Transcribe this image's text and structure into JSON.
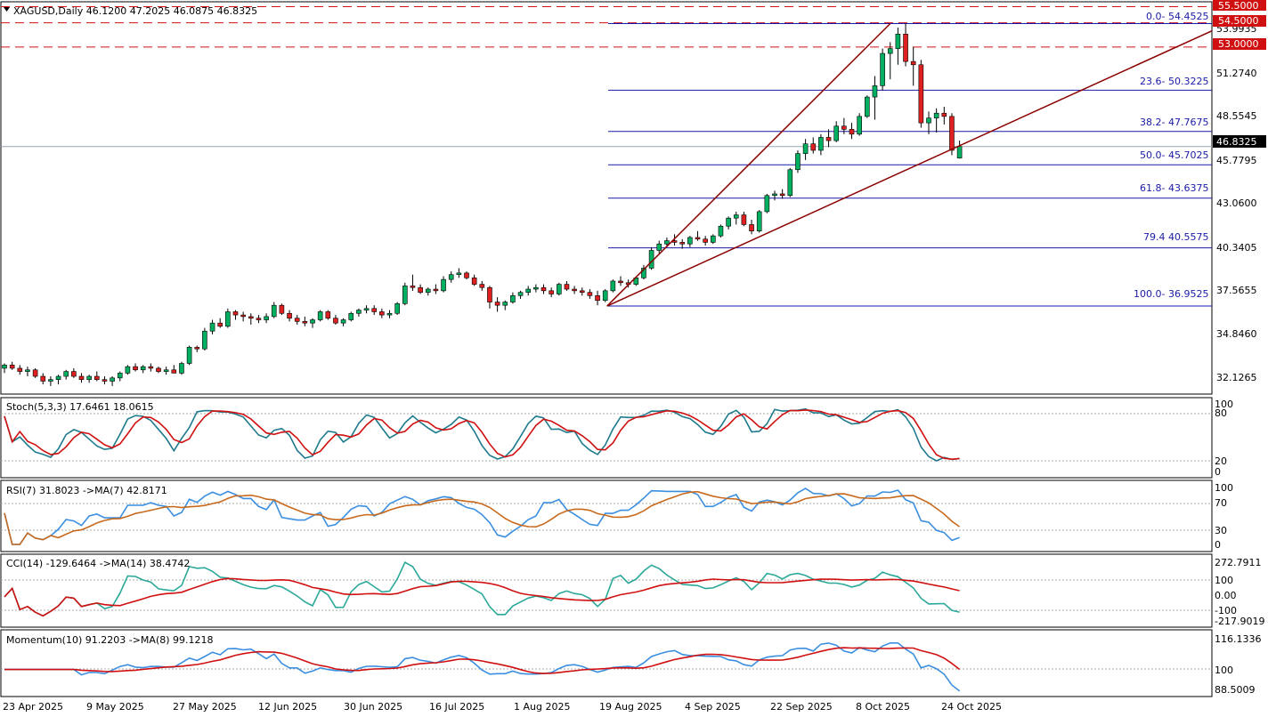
{
  "main_header": {
    "symbol_line": "XAGUSD,Daily  46.1200 47.2025 46.0875 46.8325"
  },
  "price_axis": {
    "ticks": [
      "53.9935",
      "51.2740",
      "48.5545",
      "45.7795",
      "43.0600",
      "40.3405",
      "37.5655",
      "34.8460",
      "32.1265"
    ],
    "current_price": "46.8325",
    "levels": [
      "55.5000",
      "54.5000",
      "53.0000"
    ]
  },
  "fibonacci": [
    {
      "label": "0.0- 54.4525",
      "price": 54.4525
    },
    {
      "label": "23.6- 50.3225",
      "price": 50.3225
    },
    {
      "label": "38.2- 47.7675",
      "price": 47.7675
    },
    {
      "label": "50.0- 45.7025",
      "price": 45.7025
    },
    {
      "label": "61.8- 43.6375",
      "price": 43.6375
    },
    {
      "label": "79.4 40.5575",
      "price": 40.5575
    },
    {
      "label": "100.0- 36.9525",
      "price": 36.9525
    }
  ],
  "stoch": {
    "header": "Stoch(5,3,3) 17.6461 18.0615",
    "ticks": [
      "100",
      "80",
      "20",
      "0"
    ]
  },
  "rsi": {
    "header": "RSI(7) 31.8023  ->MA(7) 42.8171",
    "ticks": [
      "100",
      "70",
      "30",
      "0"
    ]
  },
  "cci": {
    "header": "CCI(14) -129.6464  ->MA(14) 38.4742",
    "ticks": [
      "272.7911",
      "100",
      "0.00",
      "-100",
      "-217.9019"
    ]
  },
  "momentum": {
    "header": "Momentum(10) 91.2203  ->MA(8) 99.1218",
    "ticks": [
      "116.1336",
      "100",
      "88.5009"
    ]
  },
  "time_axis": [
    "23 Apr 2025",
    "9 May 2025",
    "27 May 2025",
    "12 Jun 2025",
    "30 Jun 2025",
    "16 Jul 2025",
    "1 Aug 2025",
    "19 Aug 2025",
    "4 Sep 2025",
    "22 Sep 2025",
    "8 Oct 2025",
    "24 Oct 2025"
  ],
  "colors": {
    "bull": "#00b060",
    "bear": "#e02020",
    "fib": "#1a1aa8",
    "trend": "#8b0000",
    "level": "#d01010"
  },
  "chart_data": {
    "type": "candlestick",
    "symbol": "XAGUSD",
    "timeframe": "Daily",
    "ohlc": [
      [
        33.1,
        33.4,
        32.8,
        33.3
      ],
      [
        33.3,
        33.5,
        33.0,
        33.1
      ],
      [
        33.1,
        33.3,
        32.7,
        32.9
      ],
      [
        32.9,
        33.2,
        32.6,
        33.0
      ],
      [
        33.0,
        33.1,
        32.5,
        32.6
      ],
      [
        32.6,
        32.8,
        32.1,
        32.3
      ],
      [
        32.3,
        32.6,
        32.0,
        32.4
      ],
      [
        32.4,
        32.7,
        32.1,
        32.6
      ],
      [
        32.6,
        33.0,
        32.4,
        32.9
      ],
      [
        32.9,
        33.1,
        32.5,
        32.6
      ],
      [
        32.6,
        32.8,
        32.2,
        32.4
      ],
      [
        32.4,
        32.7,
        32.2,
        32.6
      ],
      [
        32.6,
        32.9,
        32.3,
        32.4
      ],
      [
        32.4,
        32.6,
        32.1,
        32.3
      ],
      [
        32.3,
        32.6,
        32.0,
        32.5
      ],
      [
        32.5,
        32.9,
        32.3,
        32.8
      ],
      [
        32.8,
        33.3,
        32.7,
        33.2
      ],
      [
        33.2,
        33.4,
        32.9,
        33.0
      ],
      [
        33.0,
        33.3,
        32.8,
        33.2
      ],
      [
        33.2,
        33.4,
        32.9,
        33.1
      ],
      [
        33.1,
        33.2,
        32.8,
        32.9
      ],
      [
        32.9,
        33.2,
        32.7,
        33.0
      ],
      [
        33.0,
        33.3,
        32.8,
        32.8
      ],
      [
        32.8,
        33.5,
        32.7,
        33.4
      ],
      [
        33.4,
        34.5,
        33.3,
        34.4
      ],
      [
        34.4,
        34.5,
        34.1,
        34.3
      ],
      [
        34.3,
        35.6,
        34.2,
        35.4
      ],
      [
        35.4,
        36.1,
        35.2,
        35.9
      ],
      [
        35.9,
        36.2,
        35.6,
        35.7
      ],
      [
        35.7,
        36.8,
        35.6,
        36.6
      ],
      [
        36.6,
        36.7,
        36.1,
        36.4
      ],
      [
        36.4,
        36.6,
        36.0,
        36.3
      ],
      [
        36.3,
        36.5,
        35.8,
        36.2
      ],
      [
        36.2,
        36.4,
        35.9,
        36.1
      ],
      [
        36.1,
        36.5,
        35.9,
        36.3
      ],
      [
        36.3,
        37.2,
        36.2,
        37.0
      ],
      [
        37.0,
        37.1,
        36.4,
        36.5
      ],
      [
        36.5,
        36.7,
        36.0,
        36.2
      ],
      [
        36.2,
        36.4,
        35.8,
        36.0
      ],
      [
        36.0,
        36.3,
        35.7,
        35.9
      ],
      [
        35.9,
        36.2,
        35.6,
        36.1
      ],
      [
        36.1,
        36.7,
        36.0,
        36.6
      ],
      [
        36.6,
        36.7,
        36.1,
        36.2
      ],
      [
        36.2,
        36.4,
        35.8,
        35.9
      ],
      [
        35.9,
        36.2,
        35.7,
        36.1
      ],
      [
        36.1,
        36.6,
        36.0,
        36.5
      ],
      [
        36.5,
        36.8,
        36.3,
        36.7
      ],
      [
        36.7,
        37.0,
        36.5,
        36.8
      ],
      [
        36.8,
        37.0,
        36.4,
        36.6
      ],
      [
        36.6,
        36.8,
        36.2,
        36.4
      ],
      [
        36.4,
        36.7,
        36.2,
        36.5
      ],
      [
        36.5,
        37.2,
        36.4,
        37.1
      ],
      [
        37.1,
        38.4,
        37.0,
        38.2
      ],
      [
        38.2,
        38.9,
        37.9,
        38.1
      ],
      [
        38.1,
        38.3,
        37.7,
        37.8
      ],
      [
        37.8,
        38.1,
        37.6,
        38.0
      ],
      [
        38.0,
        38.3,
        37.7,
        37.9
      ],
      [
        37.9,
        38.8,
        37.8,
        38.6
      ],
      [
        38.6,
        39.1,
        38.4,
        38.9
      ],
      [
        38.9,
        39.3,
        38.7,
        39.0
      ],
      [
        39.0,
        39.1,
        38.6,
        38.7
      ],
      [
        38.7,
        38.9,
        38.2,
        38.3
      ],
      [
        38.3,
        38.5,
        37.9,
        38.1
      ],
      [
        38.1,
        38.2,
        36.8,
        37.2
      ],
      [
        37.2,
        37.5,
        36.6,
        37.0
      ],
      [
        37.0,
        37.3,
        36.7,
        37.2
      ],
      [
        37.2,
        37.8,
        37.1,
        37.6
      ],
      [
        37.6,
        37.9,
        37.4,
        37.8
      ],
      [
        37.8,
        38.2,
        37.6,
        38.0
      ],
      [
        38.0,
        38.3,
        37.8,
        38.1
      ],
      [
        38.1,
        38.3,
        37.7,
        37.9
      ],
      [
        37.9,
        38.1,
        37.5,
        37.7
      ],
      [
        37.7,
        38.4,
        37.6,
        38.3
      ],
      [
        38.3,
        38.5,
        37.9,
        38.0
      ],
      [
        38.0,
        38.2,
        37.7,
        37.9
      ],
      [
        37.9,
        38.1,
        37.6,
        37.8
      ],
      [
        37.8,
        38.0,
        37.4,
        37.6
      ],
      [
        37.6,
        37.9,
        37.0,
        37.3
      ],
      [
        37.3,
        38.0,
        37.2,
        37.9
      ],
      [
        37.9,
        38.6,
        37.8,
        38.5
      ],
      [
        38.5,
        38.8,
        38.2,
        38.4
      ],
      [
        38.4,
        38.6,
        38.1,
        38.3
      ],
      [
        38.3,
        38.8,
        38.2,
        38.7
      ],
      [
        38.7,
        39.5,
        38.6,
        39.3
      ],
      [
        39.3,
        40.6,
        39.2,
        40.4
      ],
      [
        40.4,
        41.0,
        40.2,
        40.8
      ],
      [
        40.8,
        41.2,
        40.6,
        41.0
      ],
      [
        41.0,
        41.4,
        40.7,
        40.9
      ],
      [
        40.9,
        41.1,
        40.5,
        40.8
      ],
      [
        40.8,
        41.3,
        40.6,
        41.2
      ],
      [
        41.2,
        41.6,
        41.0,
        41.1
      ],
      [
        41.1,
        41.3,
        40.7,
        40.9
      ],
      [
        40.9,
        41.4,
        40.8,
        41.3
      ],
      [
        41.3,
        42.0,
        41.2,
        41.9
      ],
      [
        41.9,
        42.5,
        41.7,
        42.4
      ],
      [
        42.4,
        42.8,
        42.0,
        42.6
      ],
      [
        42.6,
        42.8,
        41.9,
        42.0
      ],
      [
        42.0,
        42.3,
        41.4,
        41.6
      ],
      [
        41.6,
        42.9,
        41.5,
        42.8
      ],
      [
        42.8,
        43.9,
        42.7,
        43.8
      ],
      [
        43.8,
        44.1,
        43.5,
        43.9
      ],
      [
        43.9,
        44.2,
        43.6,
        43.8
      ],
      [
        43.8,
        45.5,
        43.7,
        45.4
      ],
      [
        45.4,
        46.6,
        45.2,
        46.4
      ],
      [
        46.4,
        47.3,
        46.0,
        47.0
      ],
      [
        47.0,
        47.4,
        46.4,
        46.6
      ],
      [
        46.6,
        47.6,
        46.3,
        47.4
      ],
      [
        47.4,
        47.9,
        46.8,
        47.2
      ],
      [
        47.2,
        48.4,
        47.1,
        48.1
      ],
      [
        48.1,
        48.6,
        47.6,
        47.9
      ],
      [
        47.9,
        48.3,
        47.3,
        47.6
      ],
      [
        47.6,
        48.9,
        47.5,
        48.7
      ],
      [
        48.7,
        50.0,
        48.6,
        49.9
      ],
      [
        49.9,
        51.2,
        48.5,
        50.6
      ],
      [
        50.6,
        52.9,
        50.3,
        52.6
      ],
      [
        52.6,
        53.3,
        51.0,
        52.9
      ],
      [
        52.9,
        54.2,
        51.9,
        53.8
      ],
      [
        53.8,
        54.45,
        51.8,
        52.1
      ],
      [
        52.1,
        53.0,
        50.6,
        51.9
      ],
      [
        51.9,
        52.2,
        48.0,
        48.3
      ],
      [
        48.3,
        49.0,
        47.6,
        48.6
      ],
      [
        48.6,
        49.2,
        47.7,
        48.9
      ],
      [
        48.9,
        49.3,
        48.2,
        48.7
      ],
      [
        48.7,
        48.9,
        46.3,
        46.6
      ],
      [
        46.12,
        47.2025,
        46.0875,
        46.8325
      ]
    ],
    "ylim": [
      31.5,
      55.8
    ],
    "fib_levels": [
      54.4525,
      50.3225,
      47.7675,
      45.7025,
      43.6375,
      40.5575,
      36.9525
    ],
    "horizontal_levels": [
      55.5,
      54.5,
      53.0
    ],
    "current_price": 46.8325
  }
}
